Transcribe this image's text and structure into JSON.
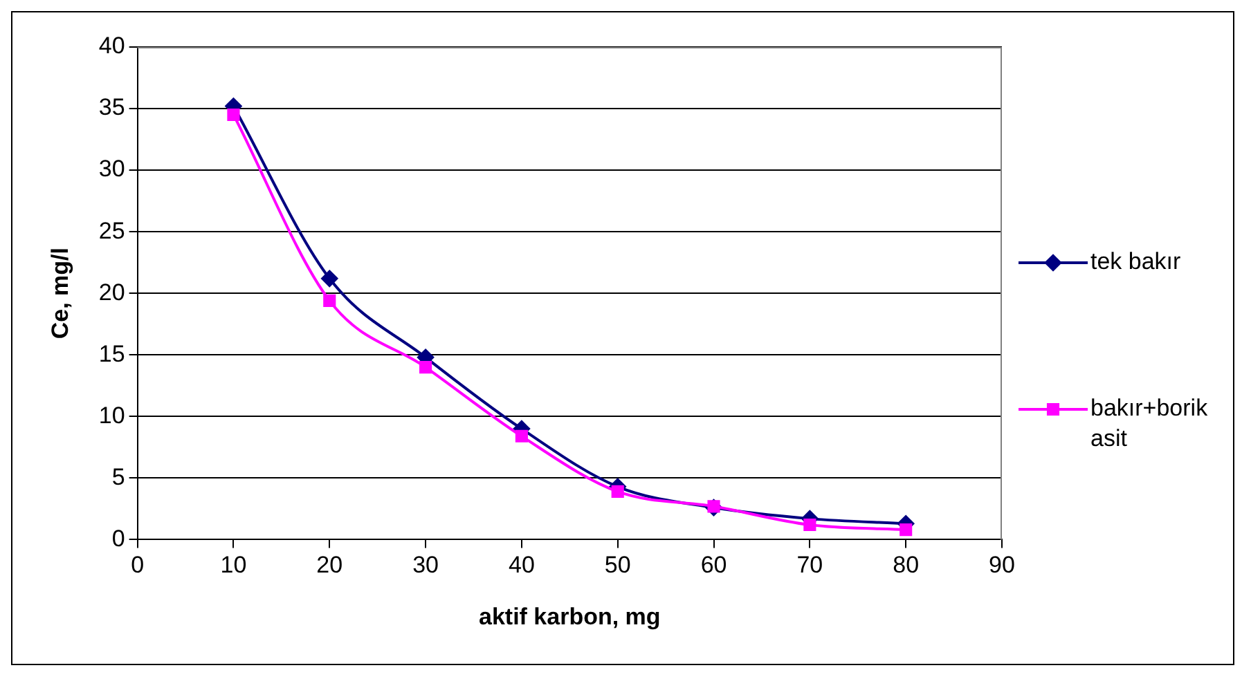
{
  "chart_data": {
    "type": "line",
    "xlabel": "aktif karbon, mg",
    "ylabel": "Ce, mg/l",
    "x": [
      10,
      20,
      30,
      40,
      50,
      60,
      70,
      80
    ],
    "series": [
      {
        "name": "tek bakır",
        "color": "#000080",
        "marker": "diamond",
        "values": [
          35.2,
          21.2,
          14.8,
          9.0,
          4.3,
          2.6,
          1.7,
          1.3
        ]
      },
      {
        "name": "bakır+borik asit",
        "color": "#ff00ff",
        "marker": "square",
        "values": [
          34.5,
          19.4,
          14.0,
          8.4,
          3.9,
          2.7,
          1.2,
          0.8
        ]
      }
    ],
    "xlim": [
      0,
      90
    ],
    "xticks": [
      0,
      10,
      20,
      30,
      40,
      50,
      60,
      70,
      80,
      90
    ],
    "ylim": [
      0,
      40
    ],
    "yticks": [
      0,
      5,
      10,
      15,
      20,
      25,
      30,
      35,
      40
    ],
    "grid": "y",
    "legend": "right"
  }
}
